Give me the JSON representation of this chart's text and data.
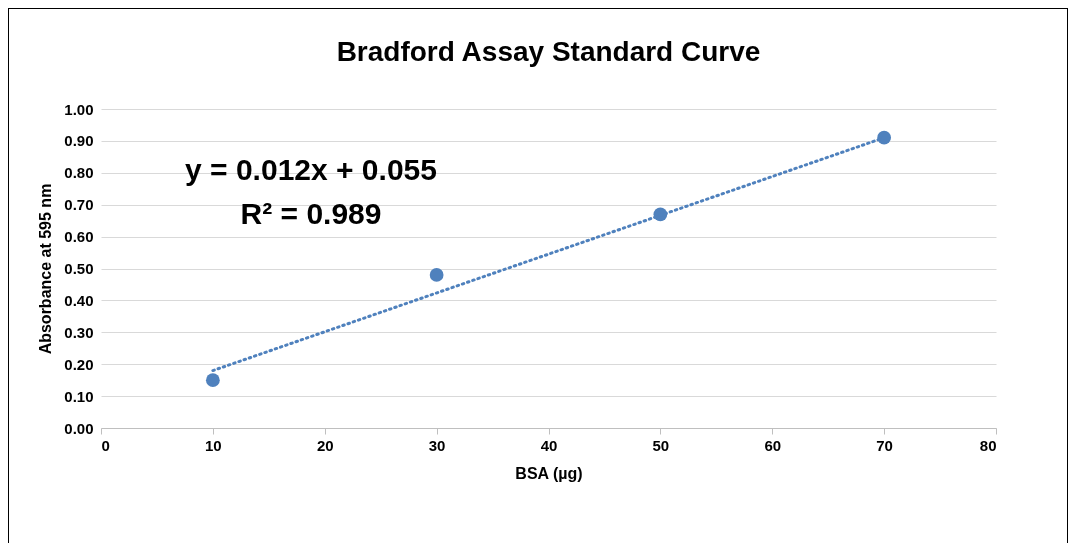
{
  "chart_data": {
    "type": "scatter",
    "title": "Bradford Assay Standard Curve",
    "xlabel": "BSA (µg)",
    "ylabel": "Absorbance at 595 nm",
    "x": [
      10,
      30,
      50,
      70
    ],
    "series": [
      {
        "color": "#4f81bd",
        "values": [
          0.15,
          0.48,
          0.67,
          0.91
        ],
        "marker": "circle"
      },
      {
        "type": "line",
        "color": "#4f81bd",
        "x": [
          10,
          70
        ],
        "values": [
          0.18,
          0.91
        ],
        "line_style": "dotted",
        "marker": "none"
      }
    ],
    "annotations": [
      "y = 0.012x + 0.055",
      "R² = 0.989"
    ],
    "xlim": [
      0,
      80
    ],
    "xticks": [
      0,
      10,
      20,
      30,
      40,
      50,
      60,
      70,
      80
    ],
    "ylim": [
      0,
      1
    ],
    "yticks": [
      {
        "value": 0,
        "label": "0.00"
      },
      {
        "value": 0.1,
        "label": "0.10"
      },
      {
        "value": 0.2,
        "label": "0.20"
      },
      {
        "value": 0.3,
        "label": "0.30"
      },
      {
        "value": 0.4,
        "label": "0.40"
      },
      {
        "value": 0.5,
        "label": "0.50"
      },
      {
        "value": 0.6,
        "label": "0.60"
      },
      {
        "value": 0.7,
        "label": "0.70"
      },
      {
        "value": 0.8,
        "label": "0.80"
      },
      {
        "value": 0.9,
        "label": "0.90"
      },
      {
        "value": 1,
        "label": "1.00"
      }
    ],
    "grid": "y"
  }
}
